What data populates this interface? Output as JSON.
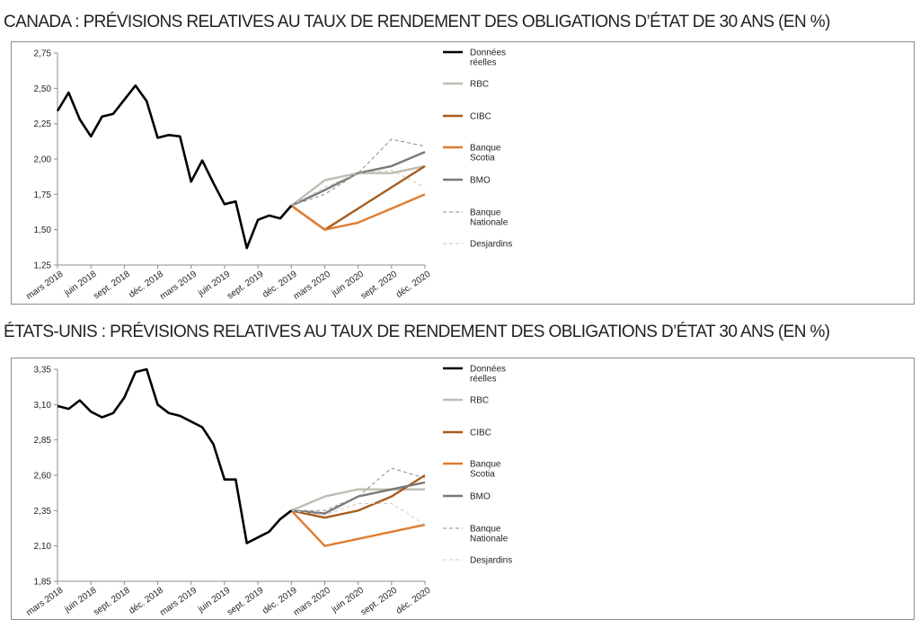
{
  "chart_data": [
    {
      "type": "line",
      "title": "CANADA : PRÉVISIONS RELATIVES AU TAUX DE RENDEMENT DES OBLIGATIONS D’ÉTAT DE 30 ANS (EN %)",
      "ylim": [
        1.25,
        2.75
      ],
      "yticks": [
        "1,25",
        "1,50",
        "1,75",
        "2,00",
        "2,25",
        "2,50",
        "2,75"
      ],
      "ytick_values": [
        1.25,
        1.5,
        1.75,
        2.0,
        2.25,
        2.5,
        2.75
      ],
      "xlim": [
        0,
        33
      ],
      "xtick_labels": [
        "mars 2018",
        "juin 2018",
        "sept. 2018",
        "déc. 2018",
        "mars 2019",
        "juin 2019",
        "sept. 2019",
        "déc. 2019",
        "mars 2020",
        "juin 2020",
        "sept. 2020",
        "déc. 2020"
      ],
      "xtick_positions": [
        0,
        3,
        6,
        9,
        12,
        15,
        18,
        21,
        24,
        27,
        30,
        33
      ],
      "legend_position": "right",
      "series": [
        {
          "name": "Données réelles",
          "color": "#000000",
          "style": "solid",
          "x": [
            0,
            1,
            2,
            3,
            4,
            5,
            6,
            7,
            8,
            9,
            10,
            11,
            12,
            13,
            14,
            15,
            16,
            17,
            18,
            19,
            20,
            21
          ],
          "values": [
            2.34,
            2.47,
            2.28,
            2.16,
            2.3,
            2.32,
            2.42,
            2.52,
            2.41,
            2.15,
            2.17,
            2.16,
            1.84,
            1.99,
            1.83,
            1.68,
            1.7,
            1.37,
            1.57,
            1.6,
            1.58,
            1.67
          ]
        },
        {
          "name": "RBC",
          "color": "#bfbcb2",
          "style": "solid",
          "x": [
            21,
            24,
            27,
            30,
            33
          ],
          "values": [
            1.67,
            1.85,
            1.9,
            1.9,
            1.95
          ]
        },
        {
          "name": "CIBC",
          "color": "#a85c1c",
          "style": "solid",
          "x": [
            21,
            24,
            27,
            30,
            33
          ],
          "values": [
            1.67,
            1.5,
            1.65,
            1.8,
            1.95
          ]
        },
        {
          "name": "Banque Scotia",
          "color": "#e07b30",
          "style": "solid",
          "x": [
            21,
            24,
            27,
            30,
            33
          ],
          "values": [
            1.67,
            1.5,
            1.55,
            1.65,
            1.75
          ]
        },
        {
          "name": "BMO",
          "color": "#7a7878",
          "style": "solid",
          "x": [
            21,
            24,
            27,
            30,
            33
          ],
          "values": [
            1.67,
            1.78,
            1.9,
            1.95,
            2.05
          ]
        },
        {
          "name": "Banque Nationale",
          "color": "#8a8a8a",
          "style": "dashed",
          "x": [
            21,
            24,
            27,
            30,
            33
          ],
          "values": [
            1.67,
            1.75,
            1.9,
            2.14,
            2.09
          ]
        },
        {
          "name": "Desjardins",
          "color": "#cfc9bb",
          "style": "dashed",
          "x": [
            21,
            24,
            27,
            30,
            33
          ],
          "values": [
            1.67,
            1.8,
            1.9,
            1.92,
            1.8
          ]
        }
      ]
    },
    {
      "type": "line",
      "title": "ÉTATS-UNIS : PRÉVISIONS RELATIVES AU TAUX DE RENDEMENT DES OBLIGATIONS D’ÉTAT 30 ANS (EN %)",
      "ylim": [
        1.85,
        3.35
      ],
      "yticks": [
        "1,85",
        "2,10",
        "2,35",
        "2,60",
        "2,85",
        "3,10",
        "3,35"
      ],
      "ytick_values": [
        1.85,
        2.1,
        2.35,
        2.6,
        2.85,
        3.1,
        3.35
      ],
      "xlim": [
        0,
        33
      ],
      "xtick_labels": [
        "mars 2018",
        "juin 2018",
        "sept. 2018",
        "déc. 2018",
        "mars 2019",
        "juin 2019",
        "sept. 2019",
        "déc. 2019",
        "mars 2020",
        "juin 2020",
        "sept. 2020",
        "déc. 2020"
      ],
      "xtick_positions": [
        0,
        3,
        6,
        9,
        12,
        15,
        18,
        21,
        24,
        27,
        30,
        33
      ],
      "legend_position": "right",
      "series": [
        {
          "name": "Données réelles",
          "color": "#000000",
          "style": "solid",
          "x": [
            0,
            1,
            2,
            3,
            4,
            5,
            6,
            7,
            8,
            9,
            10,
            11,
            12,
            13,
            14,
            15,
            16,
            17,
            18,
            19,
            20,
            21
          ],
          "values": [
            3.09,
            3.07,
            3.13,
            3.05,
            3.01,
            3.04,
            3.15,
            3.33,
            3.35,
            3.1,
            3.04,
            3.02,
            2.98,
            2.94,
            2.82,
            2.57,
            2.57,
            2.12,
            2.16,
            2.2,
            2.29,
            2.35
          ]
        },
        {
          "name": "RBC",
          "color": "#bfbcb2",
          "style": "solid",
          "x": [
            21,
            24,
            27,
            30,
            33
          ],
          "values": [
            2.35,
            2.45,
            2.5,
            2.5,
            2.5
          ]
        },
        {
          "name": "CIBC",
          "color": "#a85c1c",
          "style": "solid",
          "x": [
            21,
            24,
            27,
            30,
            33
          ],
          "values": [
            2.35,
            2.3,
            2.35,
            2.45,
            2.6
          ]
        },
        {
          "name": "Banque Scotia",
          "color": "#e07b30",
          "style": "solid",
          "x": [
            21,
            24,
            27,
            30,
            33
          ],
          "values": [
            2.35,
            2.1,
            2.15,
            2.2,
            2.25
          ]
        },
        {
          "name": "BMO",
          "color": "#7a7878",
          "style": "solid",
          "x": [
            21,
            24,
            27,
            30,
            33
          ],
          "values": [
            2.35,
            2.33,
            2.45,
            2.5,
            2.55
          ]
        },
        {
          "name": "Banque Nationale",
          "color": "#8a8a8a",
          "style": "dashed",
          "x": [
            21,
            24,
            27,
            30,
            33
          ],
          "values": [
            2.35,
            2.35,
            2.45,
            2.65,
            2.58
          ]
        },
        {
          "name": "Desjardins",
          "color": "#cfc9bb",
          "style": "dashed",
          "x": [
            21,
            24,
            27,
            30,
            33
          ],
          "values": [
            2.35,
            2.32,
            2.4,
            2.4,
            2.25
          ]
        }
      ]
    }
  ]
}
